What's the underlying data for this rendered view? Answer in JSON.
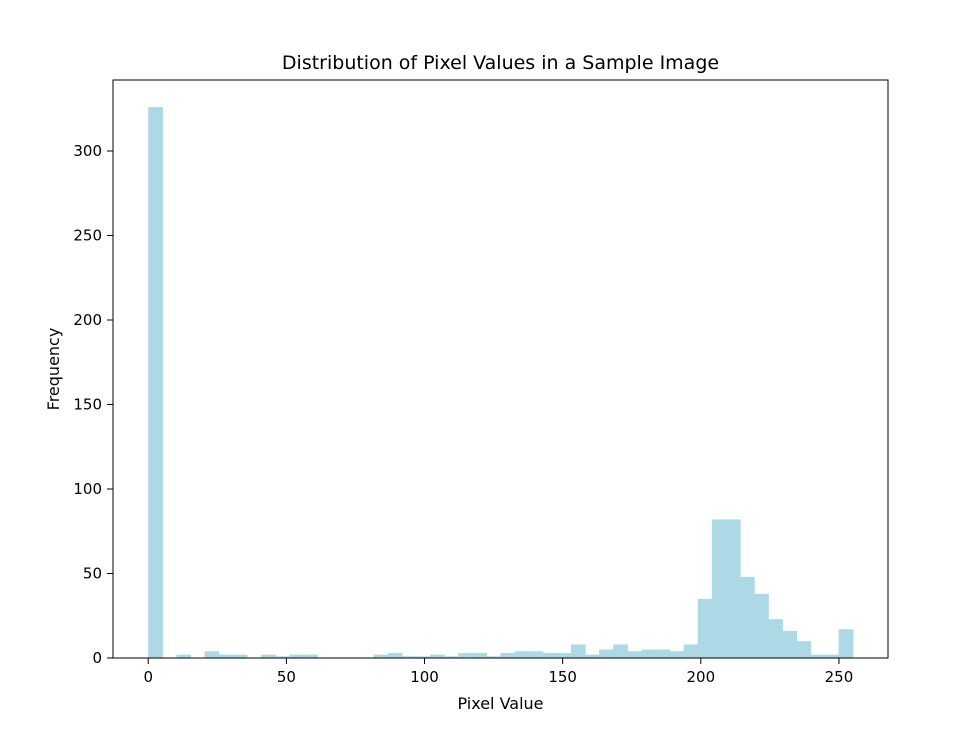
{
  "chart_data": {
    "type": "bar",
    "title": "Distribution of Pixel Values in a Sample Image",
    "xlabel": "Pixel Value",
    "ylabel": "Frequency",
    "xlim": [
      -12.75,
      267.75
    ],
    "ylim": [
      0,
      342
    ],
    "xticks": [
      0,
      50,
      100,
      150,
      200,
      250
    ],
    "yticks": [
      0,
      50,
      100,
      150,
      200,
      250,
      300
    ],
    "grid": false,
    "bar_color": "#add8e6",
    "bins": {
      "start": 0,
      "width": 5.1,
      "counts": [
        326,
        0,
        2,
        0,
        4,
        2,
        2,
        0,
        2,
        1,
        2,
        2,
        0,
        0,
        0,
        0,
        2,
        3,
        1,
        1,
        2,
        1,
        3,
        3,
        1,
        3,
        4,
        4,
        3,
        3,
        8,
        2,
        5,
        8,
        4,
        5,
        5,
        4,
        8,
        35,
        82,
        82,
        48,
        38,
        23,
        16,
        10,
        2,
        2,
        17
      ]
    }
  }
}
